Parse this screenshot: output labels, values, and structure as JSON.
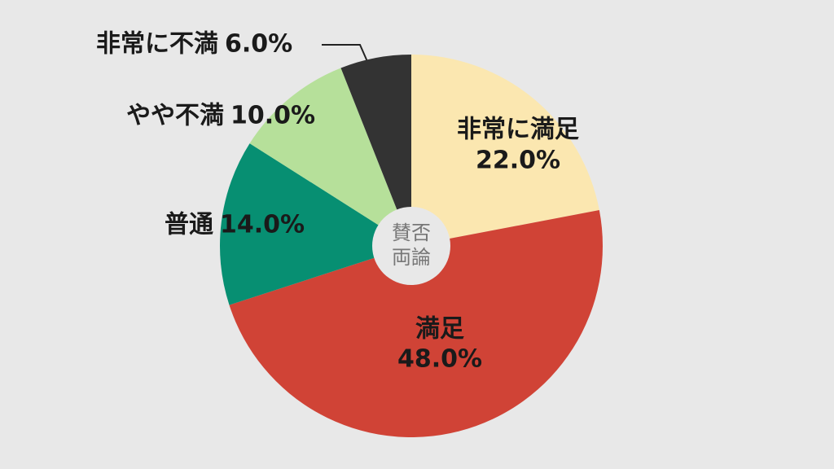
{
  "chart_data": {
    "type": "pie",
    "categories": [
      "非常に満足",
      "満足",
      "普通",
      "やや不満",
      "非常に不満"
    ],
    "values": [
      22.0,
      48.0,
      14.0,
      10.0,
      6.0
    ],
    "value_labels": [
      "22.0%",
      "48.0%",
      "14.0%",
      "10.0%",
      "6.0%"
    ],
    "colors": [
      "#fbe7b0",
      "#d04336",
      "#078f72",
      "#b6e09a",
      "#333333"
    ],
    "center_label": [
      "賛否",
      "両論"
    ]
  }
}
